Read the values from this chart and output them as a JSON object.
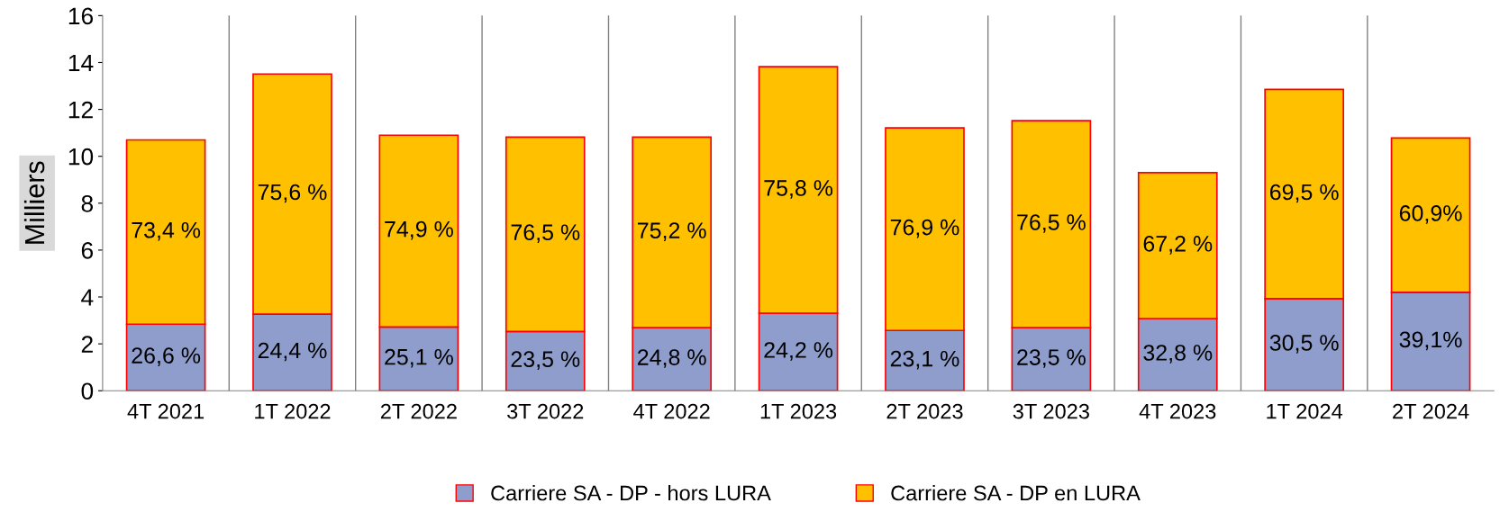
{
  "chart_data": {
    "type": "bar",
    "stacked": true,
    "ylabel": "Milliers",
    "categories": [
      "4T 2021",
      "1T 2022",
      "2T 2022",
      "3T 2022",
      "4T 2022",
      "1T 2023",
      "2T 2023",
      "3T 2023",
      "4T 2023",
      "1T 2024",
      "2T 2024"
    ],
    "series": [
      {
        "name": "Carriere SA - DP - hors LURA",
        "color": "#8e9dcb",
        "values": [
          2.84,
          3.27,
          2.72,
          2.53,
          2.69,
          3.31,
          2.57,
          2.69,
          3.08,
          3.93,
          4.2
        ]
      },
      {
        "name": "Carriere SA - DP en LURA",
        "color": "#ffc000",
        "values": [
          7.86,
          10.24,
          8.18,
          8.29,
          8.13,
          10.51,
          8.64,
          8.83,
          6.22,
          8.92,
          6.58
        ]
      }
    ],
    "annotations": [
      "26,6 %",
      "24,4 %",
      "25,1 %",
      "23,5 %",
      "24,8 %",
      "24,2 %",
      "23,1 %",
      "23,5 %",
      "32,8 %",
      "30,5 %",
      "39,1%",
      "73,4 %",
      "75,6 %",
      "74,9 %",
      "76,5 %",
      "75,2 %",
      "75,8 %",
      "76,9 %",
      "76,5 %",
      "67,2 %",
      "69,5 %",
      "60,9%"
    ],
    "ylim": [
      0,
      16
    ],
    "yticks": [
      0,
      2,
      4,
      6,
      8,
      10,
      12,
      14,
      16
    ],
    "grid": "x",
    "legend": "bottom"
  }
}
